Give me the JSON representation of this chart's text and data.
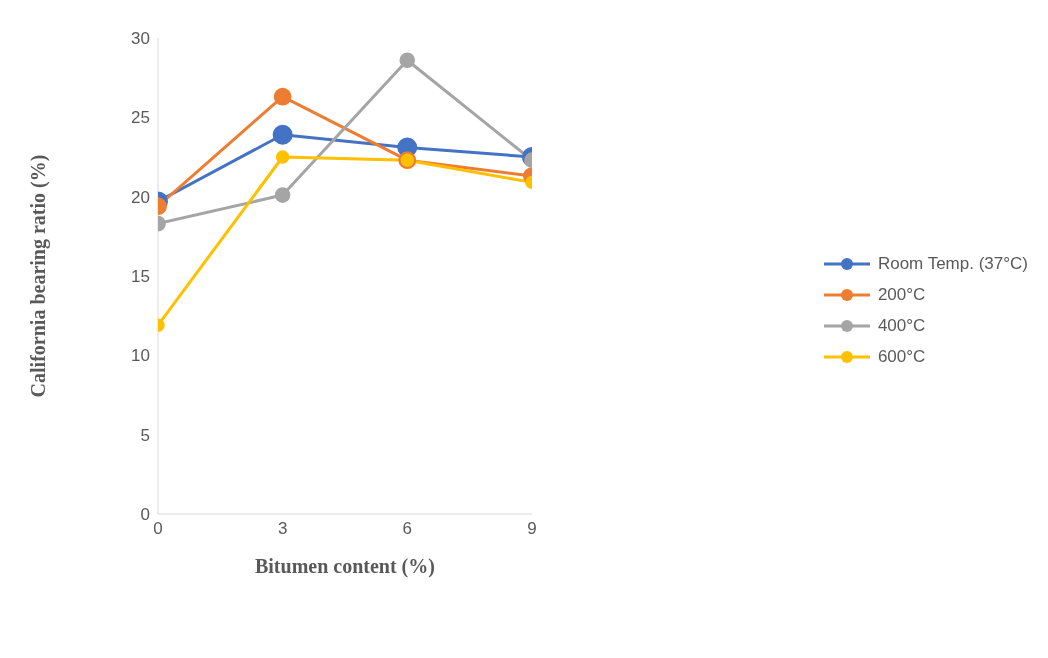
{
  "chart_data": {
    "type": "line",
    "xlabel": "Bitumen content (%)",
    "ylabel": "California  bearing ratio (%)",
    "x": [
      0,
      3,
      6,
      9
    ],
    "xlim": [
      0,
      9
    ],
    "xticks": [
      0,
      3,
      6,
      9
    ],
    "ylim": [
      0,
      30
    ],
    "yticks": [
      0,
      5,
      10,
      15,
      20,
      25,
      30
    ],
    "grid": false,
    "legend": "right",
    "marker": "circle",
    "line_style": "solid",
    "series": [
      {
        "name": "Room Temp. (37°C)",
        "color": "#4472c4",
        "values": [
          19.7,
          23.9,
          23.1,
          22.5
        ]
      },
      {
        "name": "200°C",
        "color": "#ed7d31",
        "values": [
          19.4,
          26.3,
          22.3,
          21.3
        ]
      },
      {
        "name": "400°C",
        "color": "#a5a5a5",
        "values": [
          18.3,
          20.1,
          28.6,
          22.3
        ]
      },
      {
        "name": "600°C",
        "color": "#ffc000",
        "values": [
          11.9,
          22.5,
          22.3,
          20.9
        ]
      }
    ]
  }
}
